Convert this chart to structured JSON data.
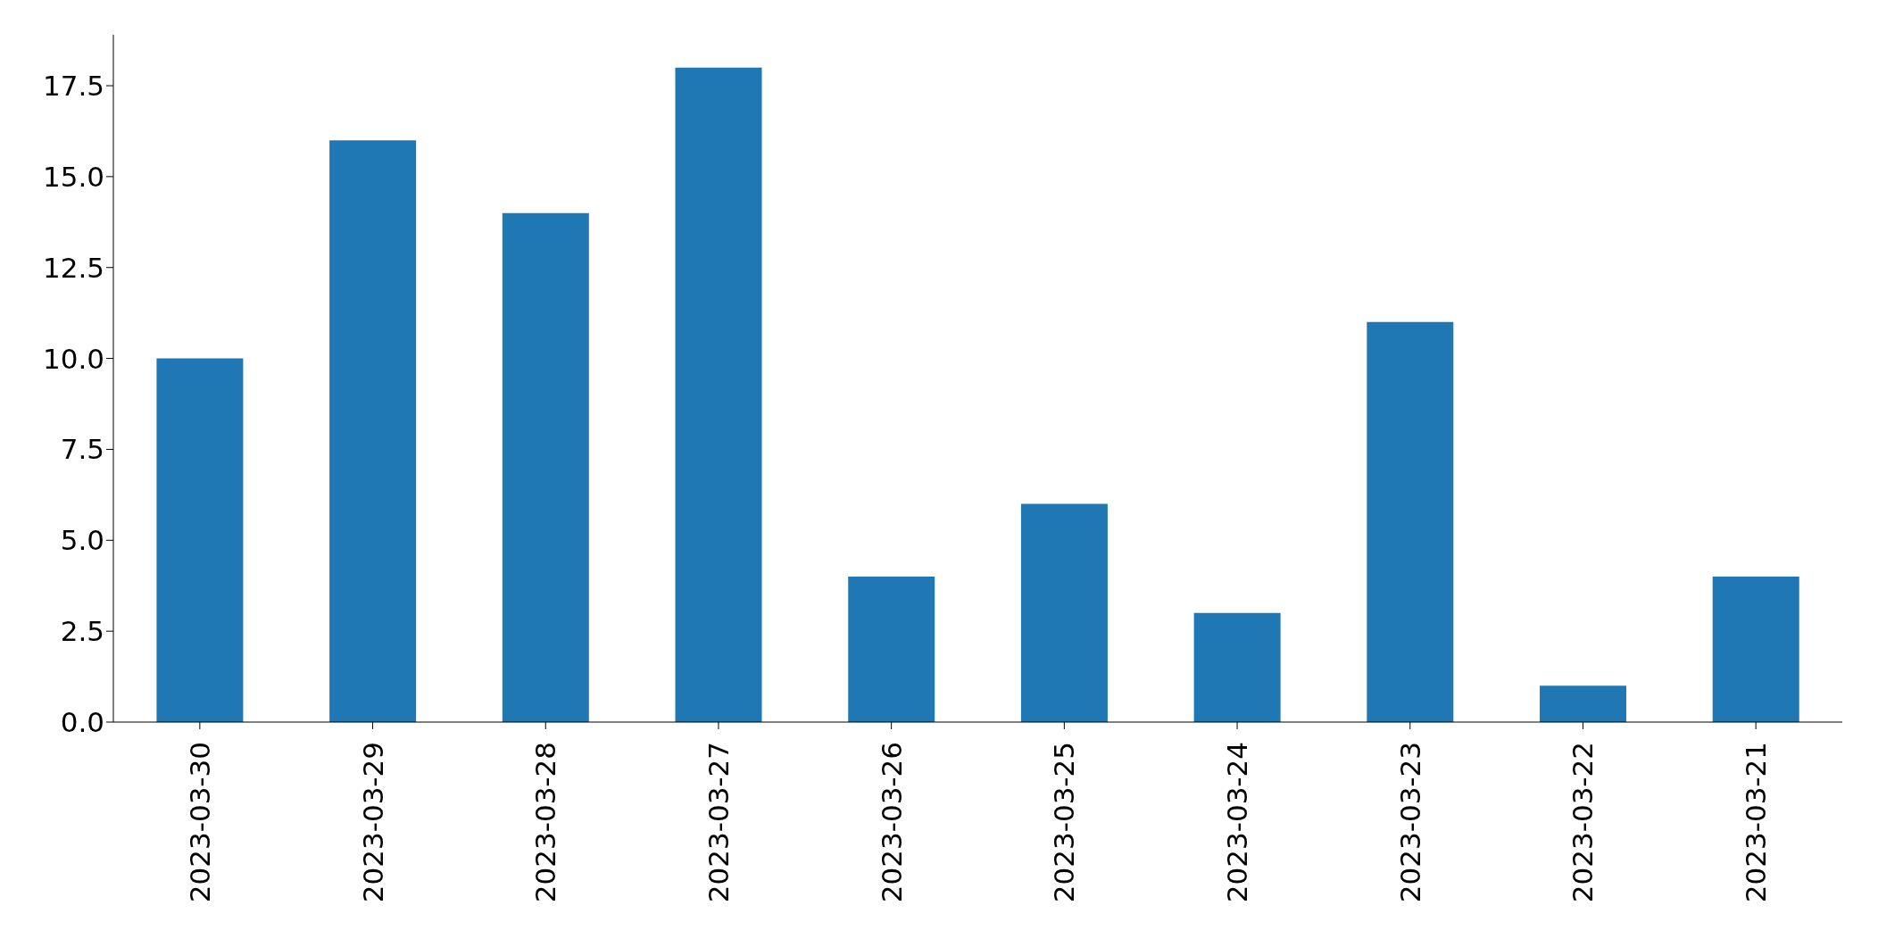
{
  "chart_data": {
    "type": "bar",
    "categories": [
      "2023-03-30",
      "2023-03-29",
      "2023-03-28",
      "2023-03-27",
      "2023-03-26",
      "2023-03-25",
      "2023-03-24",
      "2023-03-23",
      "2023-03-22",
      "2023-03-21"
    ],
    "values": [
      10,
      16,
      14,
      18,
      4,
      6,
      3,
      11,
      1,
      4
    ],
    "color": "#1f77b4",
    "ylim": [
      0,
      18.9
    ],
    "yticks": [
      {
        "value": 0,
        "label": "0.0"
      },
      {
        "value": 2.5,
        "label": "2.5"
      },
      {
        "value": 5,
        "label": "5.0"
      },
      {
        "value": 7.5,
        "label": "7.5"
      },
      {
        "value": 10,
        "label": "10.0"
      },
      {
        "value": 12.5,
        "label": "12.5"
      },
      {
        "value": 15,
        "label": "15.0"
      },
      {
        "value": 17.5,
        "label": "17.5"
      }
    ],
    "grid": false
  }
}
